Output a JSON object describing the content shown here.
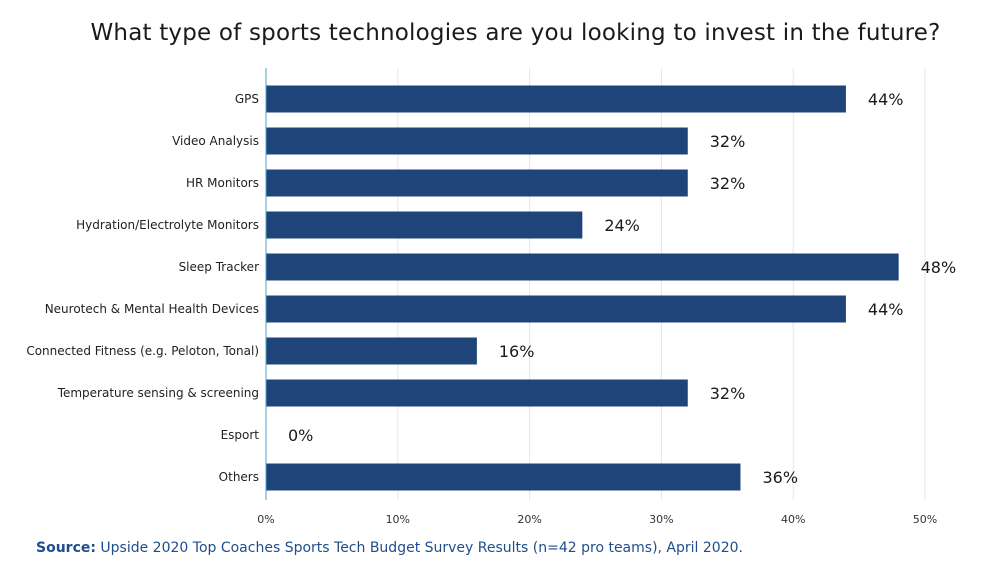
{
  "source": {
    "label": "Source:",
    "text": " Upside 2020 Top Coaches Sports Tech Budget Survey Results (n=42 pro teams), April 2020."
  },
  "colors": {
    "bar": "#1f4479",
    "axis": "#4aa3c9",
    "grid": "#e6e6e6"
  },
  "chart_data": {
    "type": "bar",
    "orientation": "horizontal",
    "title": "What type of sports technologies are you looking to invest in the future?",
    "categories": [
      "GPS",
      "Video Analysis",
      "HR Monitors",
      "Hydration/Electrolyte Monitors",
      "Sleep Tracker",
      "Neurotech & Mental Health Devices",
      "Connected Fitness (e.g. Peloton, Tonal)",
      "Temperature sensing & screening",
      "Esport",
      "Others"
    ],
    "values": [
      44,
      32,
      32,
      24,
      48,
      44,
      16,
      32,
      0,
      36
    ],
    "value_labels": [
      "44%",
      "32%",
      "32%",
      "24%",
      "48%",
      "44%",
      "16%",
      "32%",
      "0%",
      "36%"
    ],
    "xlim": [
      0,
      50
    ],
    "xticks": [
      0,
      10,
      20,
      30,
      40,
      50
    ],
    "xtick_labels": [
      "0%",
      "10%",
      "20%",
      "30%",
      "40%",
      "50%"
    ],
    "grid": true
  }
}
